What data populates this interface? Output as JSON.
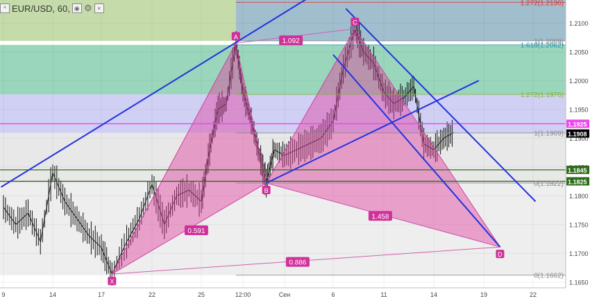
{
  "header": {
    "symbol": "EUR/USD, 60,",
    "icons": [
      "chevron-up-icon",
      "eye-icon",
      "gear-icon",
      "close-icon"
    ]
  },
  "chart_data": {
    "type": "candlestick-harmonic-pattern",
    "symbol": "EUR/USD",
    "timeframe": "60",
    "y_axis": {
      "ticks": [
        1.21,
        1.205,
        1.2,
        1.195,
        1.19,
        1.185,
        1.18,
        1.175,
        1.17,
        1.165
      ],
      "tick_labels": [
        "1.2100",
        "1.2050",
        "1.2000",
        "1.1950",
        "1.1900",
        "1.1850",
        "1.1800",
        "1.1750",
        "1.1700",
        "1.1650"
      ],
      "range": [
        1.164,
        1.214
      ]
    },
    "x_axis": {
      "ticks": [
        {
          "label": "9",
          "x": 0
        },
        {
          "label": "14",
          "x": 1
        },
        {
          "label": "17",
          "x": 2
        },
        {
          "label": "22",
          "x": 3
        },
        {
          "label": "25",
          "x": 4
        },
        {
          "label": "12:00",
          "x": 5
        },
        {
          "label": "Сен",
          "x": 6
        },
        {
          "label": "6",
          "x": 7
        },
        {
          "label": "11",
          "x": 8
        },
        {
          "label": "14",
          "x": 9
        },
        {
          "label": "19",
          "x": 10
        },
        {
          "label": "22",
          "x": 11
        }
      ]
    },
    "pattern_points": [
      {
        "name": "X",
        "x": 2.21,
        "y": 1.1664
      },
      {
        "name": "A",
        "x": 4.83,
        "y": 1.2065
      },
      {
        "name": "B",
        "x": 5.56,
        "y": 1.1822
      },
      {
        "name": "C",
        "x": 7.43,
        "y": 1.209
      },
      {
        "name": "D",
        "x": 10.33,
        "y": 1.1711
      }
    ],
    "ratio_labels": [
      {
        "text": "1.092",
        "x": 6.13,
        "y": 1.207
      },
      {
        "text": "0.591",
        "x": 3.9,
        "y": 1.174
      },
      {
        "text": "1.458",
        "x": 7.93,
        "y": 1.1765
      },
      {
        "text": "0.886",
        "x": 6.27,
        "y": 1.1685
      }
    ],
    "fib_levels": [
      {
        "label": "1.272(1.2136)",
        "value": 1.2136,
        "color": "#e03030",
        "fill": "#8fb3c4"
      },
      {
        "label": "1(1.2069)",
        "value": 1.2069,
        "color": "#888888",
        "fill": "#8fb3c4"
      },
      {
        "label": "1.618(1.2062)",
        "value": 1.2062,
        "color": "#2a8fa8",
        "fill": "#8fd1b4"
      },
      {
        "label": "1.272(1.1976)",
        "value": 1.1976,
        "color": "#7fb33a",
        "fill": "#d0d0f4"
      },
      {
        "label": "1(1.1909)",
        "value": 1.1909,
        "color": "#888888",
        "fill": "#e8e8e8"
      },
      {
        "label": "0(1.1822)",
        "value": 1.1822,
        "color": "#888888",
        "fill": "#e8e8e8"
      },
      {
        "label": "0(1.1662)",
        "value": 1.1662,
        "color": "#888888",
        "fill": "#ffffff"
      }
    ],
    "price_badges": [
      {
        "text": "1.1925",
        "value": 1.1925,
        "color": "#ee44ee"
      },
      {
        "text": "1.1908",
        "value": 1.1908,
        "color": "#000000"
      },
      {
        "text": "1.1845",
        "value": 1.1845,
        "color": "#2e6b1a"
      },
      {
        "text": "1.1825",
        "value": 1.1825,
        "color": "#2e6b1a"
      }
    ],
    "horizontal_lines": [
      {
        "value": 1.1925,
        "color": "#ee44ee"
      },
      {
        "value": 1.1845,
        "color": "#2e6b1a"
      },
      {
        "value": 1.1825,
        "color": "#2e6b1a"
      }
    ],
    "trend_lines": [
      {
        "from": [
          -0.05,
          1.1815
        ],
        "to": [
          6.9,
          1.2165
        ]
      },
      {
        "from": [
          5.56,
          1.1822
        ],
        "to": [
          9.9,
          1.2
        ]
      },
      {
        "from": [
          7.25,
          1.2125
        ],
        "to": [
          11.05,
          1.179
        ]
      },
      {
        "from": [
          7.0,
          1.2045
        ],
        "to": [
          10.33,
          1.1711
        ]
      }
    ],
    "price_series": {
      "x": [
        0.0,
        0.25,
        0.5,
        0.75,
        1.0,
        1.25,
        1.5,
        1.75,
        2.0,
        2.21,
        2.5,
        2.75,
        3.0,
        3.25,
        3.5,
        3.75,
        4.0,
        4.2,
        4.4,
        4.6,
        4.83,
        5.0,
        5.2,
        5.4,
        5.56,
        5.75,
        6.0,
        6.25,
        6.5,
        6.75,
        7.0,
        7.2,
        7.43,
        7.6,
        7.8,
        8.0,
        8.2,
        8.4,
        8.6,
        8.8,
        9.0,
        9.2,
        9.4
      ],
      "y": [
        1.178,
        1.175,
        1.177,
        1.172,
        1.184,
        1.179,
        1.176,
        1.173,
        1.171,
        1.1664,
        1.172,
        1.176,
        1.182,
        1.175,
        1.18,
        1.181,
        1.179,
        1.188,
        1.195,
        1.196,
        1.2065,
        1.198,
        1.193,
        1.187,
        1.1822,
        1.188,
        1.187,
        1.188,
        1.189,
        1.19,
        1.193,
        1.202,
        1.209,
        1.205,
        1.203,
        1.198,
        1.196,
        1.197,
        1.199,
        1.189,
        1.188,
        1.19,
        1.191
      ]
    }
  }
}
